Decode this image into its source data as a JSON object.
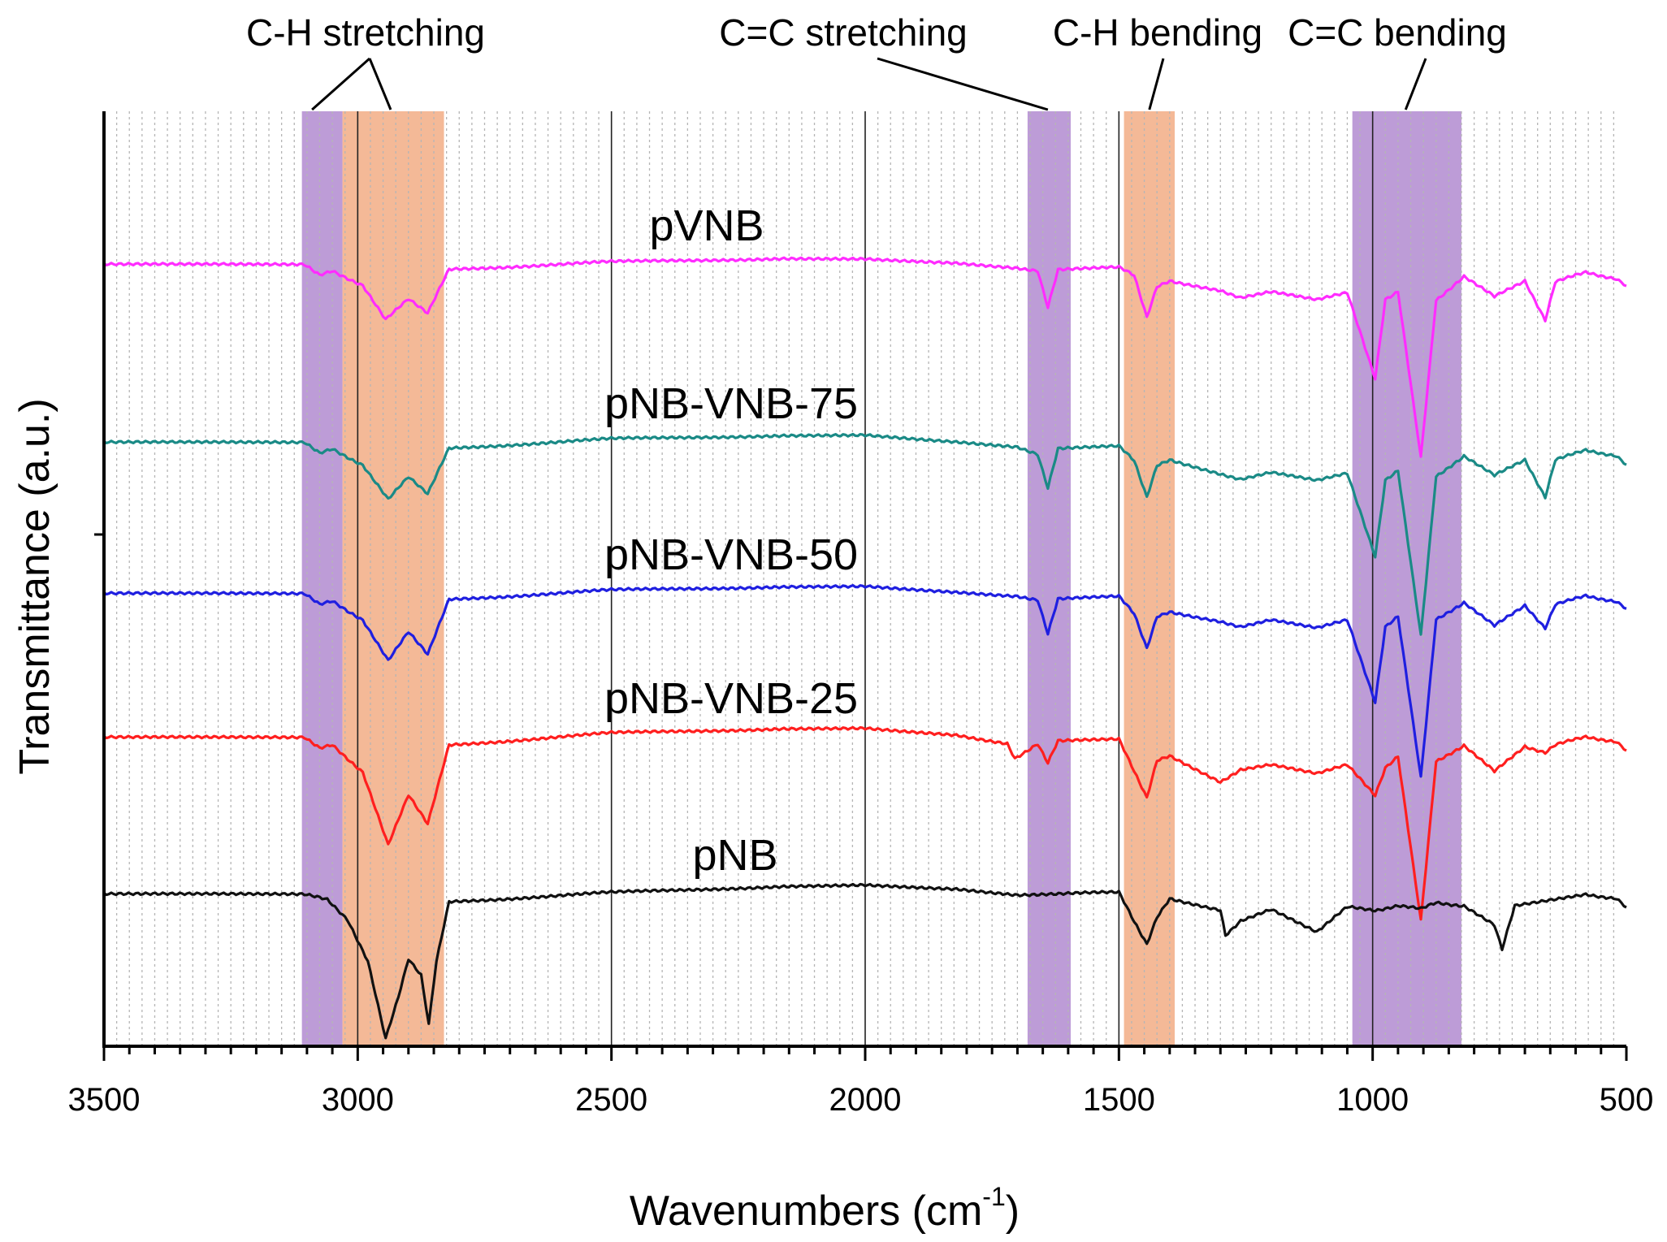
{
  "chart_data": {
    "type": "line",
    "title": "",
    "xlabel": "Wavenumbers (cm",
    "xlabel_superscript": "-1",
    "xlabel_suffix": ")",
    "ylabel": "Transmittance (a.u.)",
    "xlim": [
      3500,
      500
    ],
    "x_reversed": true,
    "x_ticks": [
      3500,
      3000,
      2500,
      2000,
      1500,
      1000,
      500
    ],
    "x_tick_labels": [
      "3500",
      "3000",
      "2500",
      "2000",
      "1500",
      "1000",
      "500"
    ],
    "ylim": [
      0,
      100
    ],
    "grid": "vertical",
    "bands": [
      {
        "name": "C-H stretching",
        "from": 3110,
        "to": 3030,
        "color": "#b28bd0"
      },
      {
        "name": "C-H stretching",
        "from": 3030,
        "to": 2830,
        "color": "#f2ad85"
      },
      {
        "name": "C=C stretching",
        "from": 1680,
        "to": 1595,
        "color": "#b28bd0"
      },
      {
        "name": "C-H bending",
        "from": 1490,
        "to": 1390,
        "color": "#f2ad85"
      },
      {
        "name": "C=C bending",
        "from": 1040,
        "to": 825,
        "color": "#b28bd0"
      }
    ],
    "annotations": [
      {
        "text": "C-H stretching",
        "points_to": [
          3090,
          2935
        ]
      },
      {
        "text": "C=C stretching",
        "points_to": [
          1640
        ]
      },
      {
        "text": "C-H bending",
        "points_to": [
          1440
        ]
      },
      {
        "text": "C=C bending",
        "points_to": [
          935
        ]
      }
    ],
    "series": [
      {
        "name": "pVNB",
        "color": "#ff2cff",
        "baseline": 84.5,
        "points": [
          [
            3500,
            84.5
          ],
          [
            3105,
            84.5
          ],
          [
            3075,
            83.3
          ],
          [
            3050,
            83.8
          ],
          [
            2990,
            82.3
          ],
          [
            2945,
            78.5
          ],
          [
            2900,
            80.8
          ],
          [
            2862,
            79.2
          ],
          [
            2820,
            84.0
          ],
          [
            2500,
            84.8
          ],
          [
            2160,
            85.2
          ],
          [
            2000,
            85.2
          ],
          [
            1820,
            84.7
          ],
          [
            1700,
            84.2
          ],
          [
            1660,
            83.8
          ],
          [
            1640,
            79.8
          ],
          [
            1620,
            83.9
          ],
          [
            1500,
            84.2
          ],
          [
            1470,
            83.3
          ],
          [
            1445,
            78.8
          ],
          [
            1425,
            82.2
          ],
          [
            1400,
            82.8
          ],
          [
            1300,
            81.7
          ],
          [
            1260,
            81.0
          ],
          [
            1200,
            81.5
          ],
          [
            1110,
            80.8
          ],
          [
            1050,
            81.4
          ],
          [
            995,
            72.2
          ],
          [
            975,
            80.8
          ],
          [
            950,
            81.6
          ],
          [
            905,
            63.5
          ],
          [
            875,
            80.6
          ],
          [
            820,
            83.3
          ],
          [
            760,
            81.0
          ],
          [
            700,
            82.8
          ],
          [
            660,
            78.5
          ],
          [
            640,
            82.6
          ],
          [
            580,
            83.7
          ],
          [
            520,
            83.0
          ],
          [
            500,
            82.2
          ]
        ]
      },
      {
        "name": "pNB-VNB-75",
        "color": "#1a8a86",
        "baseline": 65.2,
        "points": [
          [
            3500,
            65.2
          ],
          [
            3105,
            65.2
          ],
          [
            3075,
            64.0
          ],
          [
            3050,
            64.5
          ],
          [
            2990,
            62.8
          ],
          [
            2940,
            59.0
          ],
          [
            2900,
            61.5
          ],
          [
            2862,
            59.6
          ],
          [
            2820,
            64.6
          ],
          [
            2500,
            65.6
          ],
          [
            2160,
            66.0
          ],
          [
            2000,
            66.1
          ],
          [
            1820,
            65.3
          ],
          [
            1700,
            64.8
          ],
          [
            1660,
            63.9
          ],
          [
            1640,
            60.2
          ],
          [
            1620,
            64.5
          ],
          [
            1500,
            64.8
          ],
          [
            1470,
            63.2
          ],
          [
            1445,
            59.3
          ],
          [
            1425,
            62.8
          ],
          [
            1400,
            63.4
          ],
          [
            1300,
            61.8
          ],
          [
            1260,
            61.3
          ],
          [
            1200,
            61.9
          ],
          [
            1110,
            61.2
          ],
          [
            1050,
            61.8
          ],
          [
            995,
            52.9
          ],
          [
            975,
            61.2
          ],
          [
            950,
            62.2
          ],
          [
            905,
            44.2
          ],
          [
            875,
            61.5
          ],
          [
            820,
            63.8
          ],
          [
            760,
            61.6
          ],
          [
            700,
            63.4
          ],
          [
            660,
            59.3
          ],
          [
            640,
            63.3
          ],
          [
            580,
            64.4
          ],
          [
            520,
            63.8
          ],
          [
            500,
            62.8
          ]
        ]
      },
      {
        "name": "pNB-VNB-50",
        "color": "#1f1fe0",
        "baseline": 48.8,
        "points": [
          [
            3500,
            48.8
          ],
          [
            3105,
            48.8
          ],
          [
            3075,
            47.6
          ],
          [
            3050,
            48.0
          ],
          [
            2990,
            46.0
          ],
          [
            2940,
            41.5
          ],
          [
            2900,
            44.7
          ],
          [
            2862,
            42.2
          ],
          [
            2820,
            48.2
          ],
          [
            2500,
            49.2
          ],
          [
            2160,
            49.6
          ],
          [
            2000,
            49.7
          ],
          [
            1820,
            49.0
          ],
          [
            1700,
            48.6
          ],
          [
            1660,
            48.1
          ],
          [
            1640,
            44.4
          ],
          [
            1620,
            48.2
          ],
          [
            1500,
            48.5
          ],
          [
            1470,
            46.6
          ],
          [
            1445,
            42.9
          ],
          [
            1425,
            46.4
          ],
          [
            1400,
            46.9
          ],
          [
            1300,
            45.8
          ],
          [
            1260,
            45.3
          ],
          [
            1200,
            45.9
          ],
          [
            1110,
            45.2
          ],
          [
            1050,
            45.9
          ],
          [
            995,
            37.1
          ],
          [
            975,
            45.3
          ],
          [
            950,
            46.4
          ],
          [
            905,
            28.8
          ],
          [
            875,
            46.0
          ],
          [
            820,
            47.9
          ],
          [
            760,
            45.3
          ],
          [
            700,
            47.6
          ],
          [
            660,
            45.1
          ],
          [
            640,
            47.6
          ],
          [
            580,
            48.6
          ],
          [
            520,
            48.0
          ],
          [
            500,
            47.2
          ]
        ]
      },
      {
        "name": "pNB-VNB-25",
        "color": "#ff1f1f",
        "baseline": 33.2,
        "points": [
          [
            3500,
            33.2
          ],
          [
            3105,
            33.2
          ],
          [
            3075,
            32.0
          ],
          [
            3050,
            32.4
          ],
          [
            2990,
            29.5
          ],
          [
            2940,
            21.5
          ],
          [
            2900,
            27.0
          ],
          [
            2862,
            23.8
          ],
          [
            2820,
            32.4
          ],
          [
            2500,
            33.7
          ],
          [
            2160,
            34.2
          ],
          [
            2000,
            34.3
          ],
          [
            1820,
            33.5
          ],
          [
            1720,
            32.6
          ],
          [
            1705,
            31.0
          ],
          [
            1660,
            32.5
          ],
          [
            1640,
            30.4
          ],
          [
            1620,
            32.8
          ],
          [
            1500,
            33.0
          ],
          [
            1470,
            29.5
          ],
          [
            1445,
            26.7
          ],
          [
            1425,
            30.8
          ],
          [
            1400,
            31.3
          ],
          [
            1300,
            28.4
          ],
          [
            1260,
            29.8
          ],
          [
            1200,
            30.2
          ],
          [
            1110,
            29.4
          ],
          [
            1050,
            30.2
          ],
          [
            995,
            27.0
          ],
          [
            975,
            30.0
          ],
          [
            950,
            31.2
          ],
          [
            905,
            13.3
          ],
          [
            875,
            30.6
          ],
          [
            820,
            32.4
          ],
          [
            760,
            29.5
          ],
          [
            700,
            32.3
          ],
          [
            660,
            31.6
          ],
          [
            640,
            32.4
          ],
          [
            580,
            33.3
          ],
          [
            520,
            32.8
          ],
          [
            500,
            31.8
          ]
        ]
      },
      {
        "name": "pNB",
        "color": "#111111",
        "baseline": 16.2,
        "points": [
          [
            3500,
            16.2
          ],
          [
            3105,
            16.2
          ],
          [
            3060,
            15.6
          ],
          [
            3020,
            13.5
          ],
          [
            2980,
            9.0
          ],
          [
            2945,
            0.5
          ],
          [
            2920,
            5.0
          ],
          [
            2900,
            9.2
          ],
          [
            2875,
            7.5
          ],
          [
            2860,
            2.2
          ],
          [
            2845,
            9.0
          ],
          [
            2820,
            15.4
          ],
          [
            2500,
            16.4
          ],
          [
            2160,
            17.1
          ],
          [
            2000,
            17.3
          ],
          [
            1820,
            16.8
          ],
          [
            1700,
            16.2
          ],
          [
            1500,
            16.4
          ],
          [
            1470,
            13.2
          ],
          [
            1445,
            10.8
          ],
          [
            1425,
            13.8
          ],
          [
            1400,
            15.8
          ],
          [
            1300,
            14.5
          ],
          [
            1290,
            11.8
          ],
          [
            1260,
            13.4
          ],
          [
            1200,
            14.5
          ],
          [
            1110,
            12.2
          ],
          [
            1050,
            14.8
          ],
          [
            995,
            14.5
          ],
          [
            950,
            15.0
          ],
          [
            905,
            14.6
          ],
          [
            875,
            15.3
          ],
          [
            820,
            15.0
          ],
          [
            760,
            12.8
          ],
          [
            745,
            10.2
          ],
          [
            720,
            15.0
          ],
          [
            580,
            16.2
          ],
          [
            520,
            15.8
          ],
          [
            500,
            14.8
          ]
        ]
      }
    ]
  }
}
